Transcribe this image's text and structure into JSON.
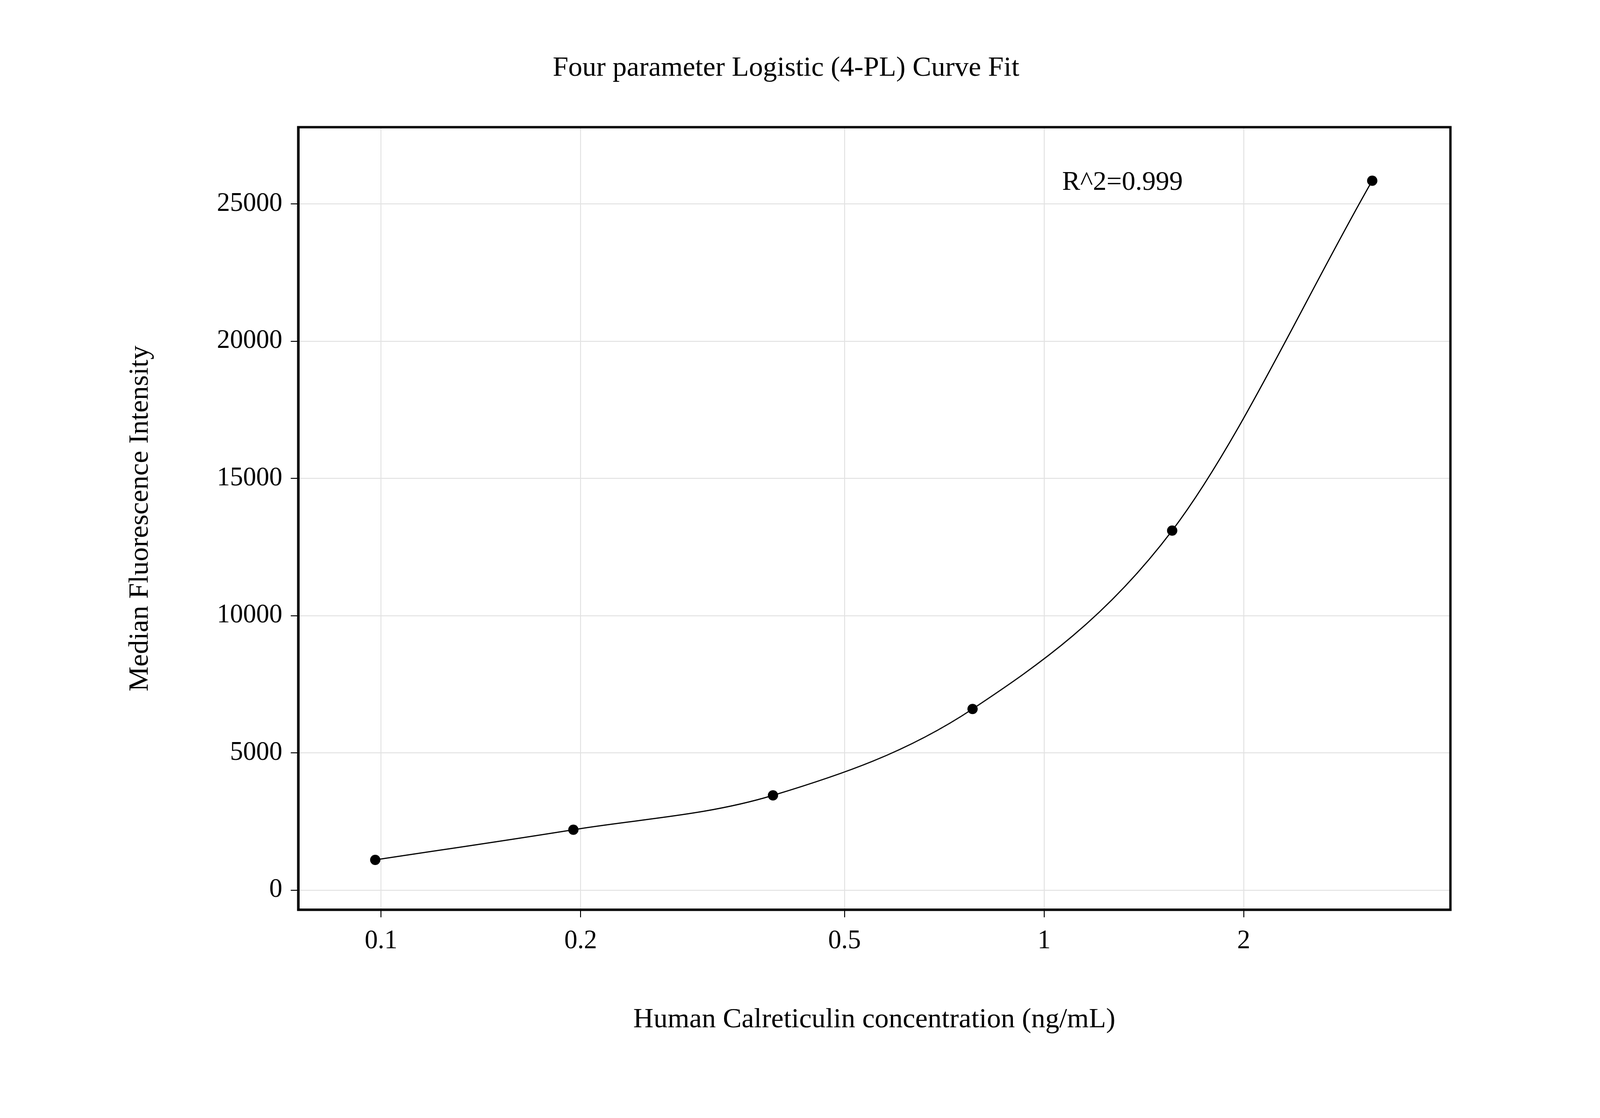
{
  "chart_data": {
    "type": "scatter",
    "title": "Four parameter Logistic (4-PL) Curve Fit",
    "x_label": "Human Calreticulin concentration (ng/mL)",
    "y_label": "Median Fluorescence Intensity",
    "annotation": "R^2=0.999",
    "x": [
      0.098,
      0.195,
      0.39,
      0.78,
      1.56,
      3.125
    ],
    "values": [
      1100,
      2200,
      3450,
      6600,
      13100,
      25850
    ],
    "color": "#000000",
    "marker": "circle",
    "line_style": "solid",
    "log": "x",
    "xlim": [
      0.075,
      4.1
    ],
    "xticks": [
      0.1,
      0.2,
      0.5,
      1,
      2
    ],
    "ylim": [
      -720,
      27800
    ],
    "yticks": [
      0,
      5000,
      10000,
      15000,
      20000,
      25000
    ],
    "grid": true
  }
}
